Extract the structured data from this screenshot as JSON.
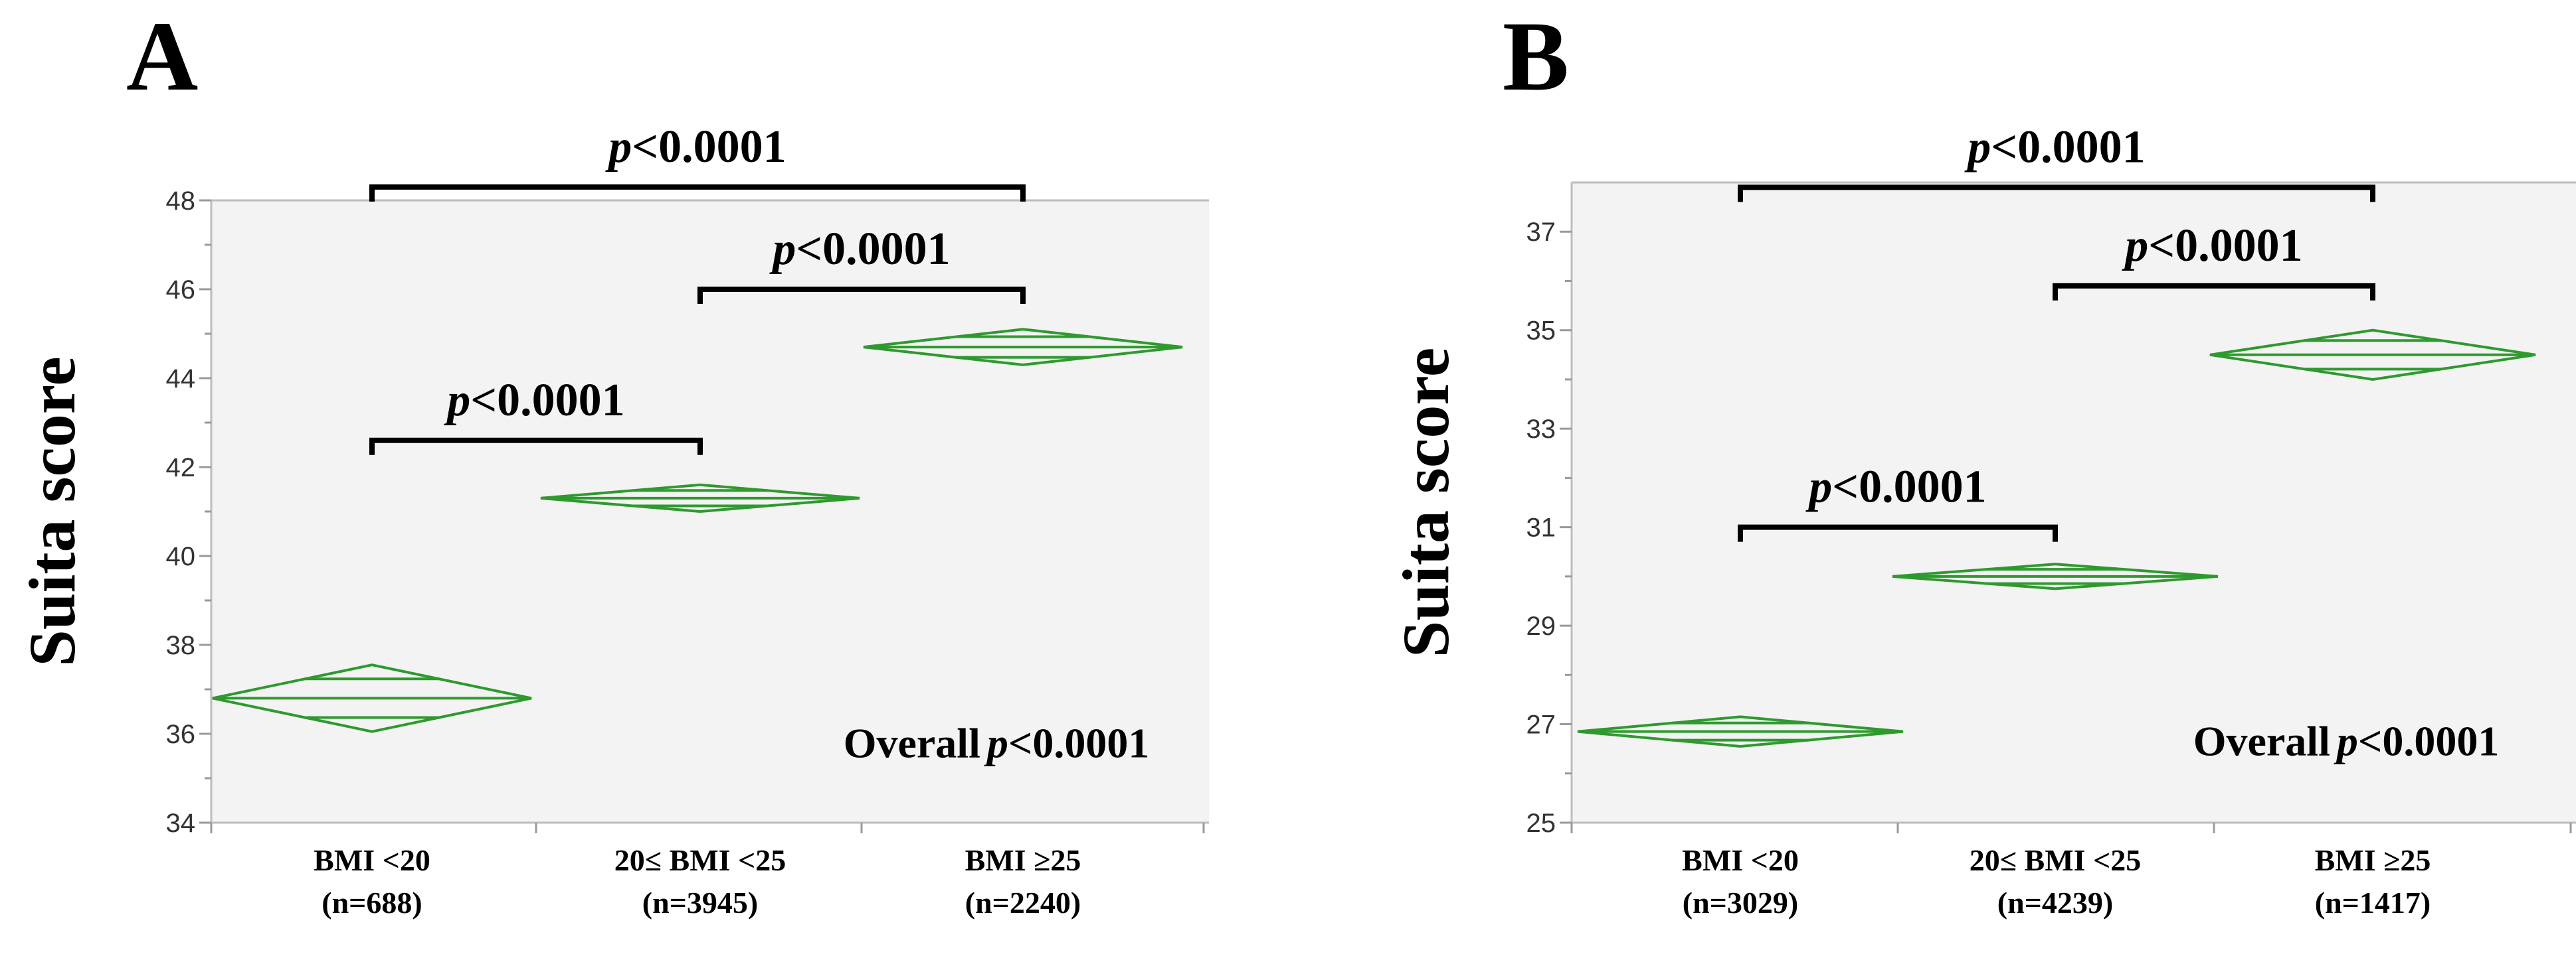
{
  "colors": {
    "diamond": "#2e9a2e",
    "bracket": "#000000",
    "plot_background": "#f3f3f3"
  },
  "chart_data": [
    {
      "panel": "A",
      "type": "diamond",
      "ylabel": "Suita score",
      "ylim": [
        34,
        48
      ],
      "yticks": [
        34,
        36,
        38,
        40,
        42,
        44,
        46,
        48
      ],
      "categories": [
        {
          "label": "BMI <20",
          "n_label": "(n=688)",
          "mean": 36.8,
          "lower": 36.05,
          "upper": 37.55
        },
        {
          "label": "20≤ BMI <25",
          "n_label": "(n=3945)",
          "mean": 41.3,
          "lower": 41.0,
          "upper": 41.6
        },
        {
          "label": "BMI ≥25",
          "n_label": "(n=2240)",
          "mean": 44.7,
          "lower": 44.3,
          "upper": 45.1
        }
      ],
      "comparisons": [
        {
          "from": 0,
          "to": 2,
          "p_label": "p",
          "p_value": "<0.0001",
          "level": 48.3
        },
        {
          "from": 1,
          "to": 2,
          "p_label": "p",
          "p_value": "<0.0001",
          "level": 46.0
        },
        {
          "from": 0,
          "to": 1,
          "p_label": "p",
          "p_value": "<0.0001",
          "level": 42.6
        }
      ],
      "overall": {
        "prefix": "Overall",
        "p_label": "p",
        "p_value": "<0.0001"
      }
    },
    {
      "panel": "B",
      "type": "diamond",
      "ylabel": "Suita score",
      "ylim": [
        25,
        38
      ],
      "yticks": [
        25,
        27,
        29,
        31,
        33,
        35,
        37
      ],
      "categories": [
        {
          "label": "BMI <20",
          "n_label": "(n=3029)",
          "mean": 26.85,
          "lower": 26.55,
          "upper": 27.15
        },
        {
          "label": "20≤ BMI <25",
          "n_label": "(n=4239)",
          "mean": 30.0,
          "lower": 29.75,
          "upper": 30.25
        },
        {
          "label": "BMI ≥25",
          "n_label": "(n=1417)",
          "mean": 34.5,
          "lower": 34.0,
          "upper": 35.0
        }
      ],
      "comparisons": [
        {
          "from": 0,
          "to": 2,
          "p_label": "p",
          "p_value": "<0.0001",
          "level": 37.9
        },
        {
          "from": 1,
          "to": 2,
          "p_label": "p",
          "p_value": "<0.0001",
          "level": 35.9
        },
        {
          "from": 0,
          "to": 1,
          "p_label": "p",
          "p_value": "<0.0001",
          "level": 31.0
        }
      ],
      "overall": {
        "prefix": "Overall",
        "p_label": "p",
        "p_value": "<0.0001"
      }
    }
  ]
}
